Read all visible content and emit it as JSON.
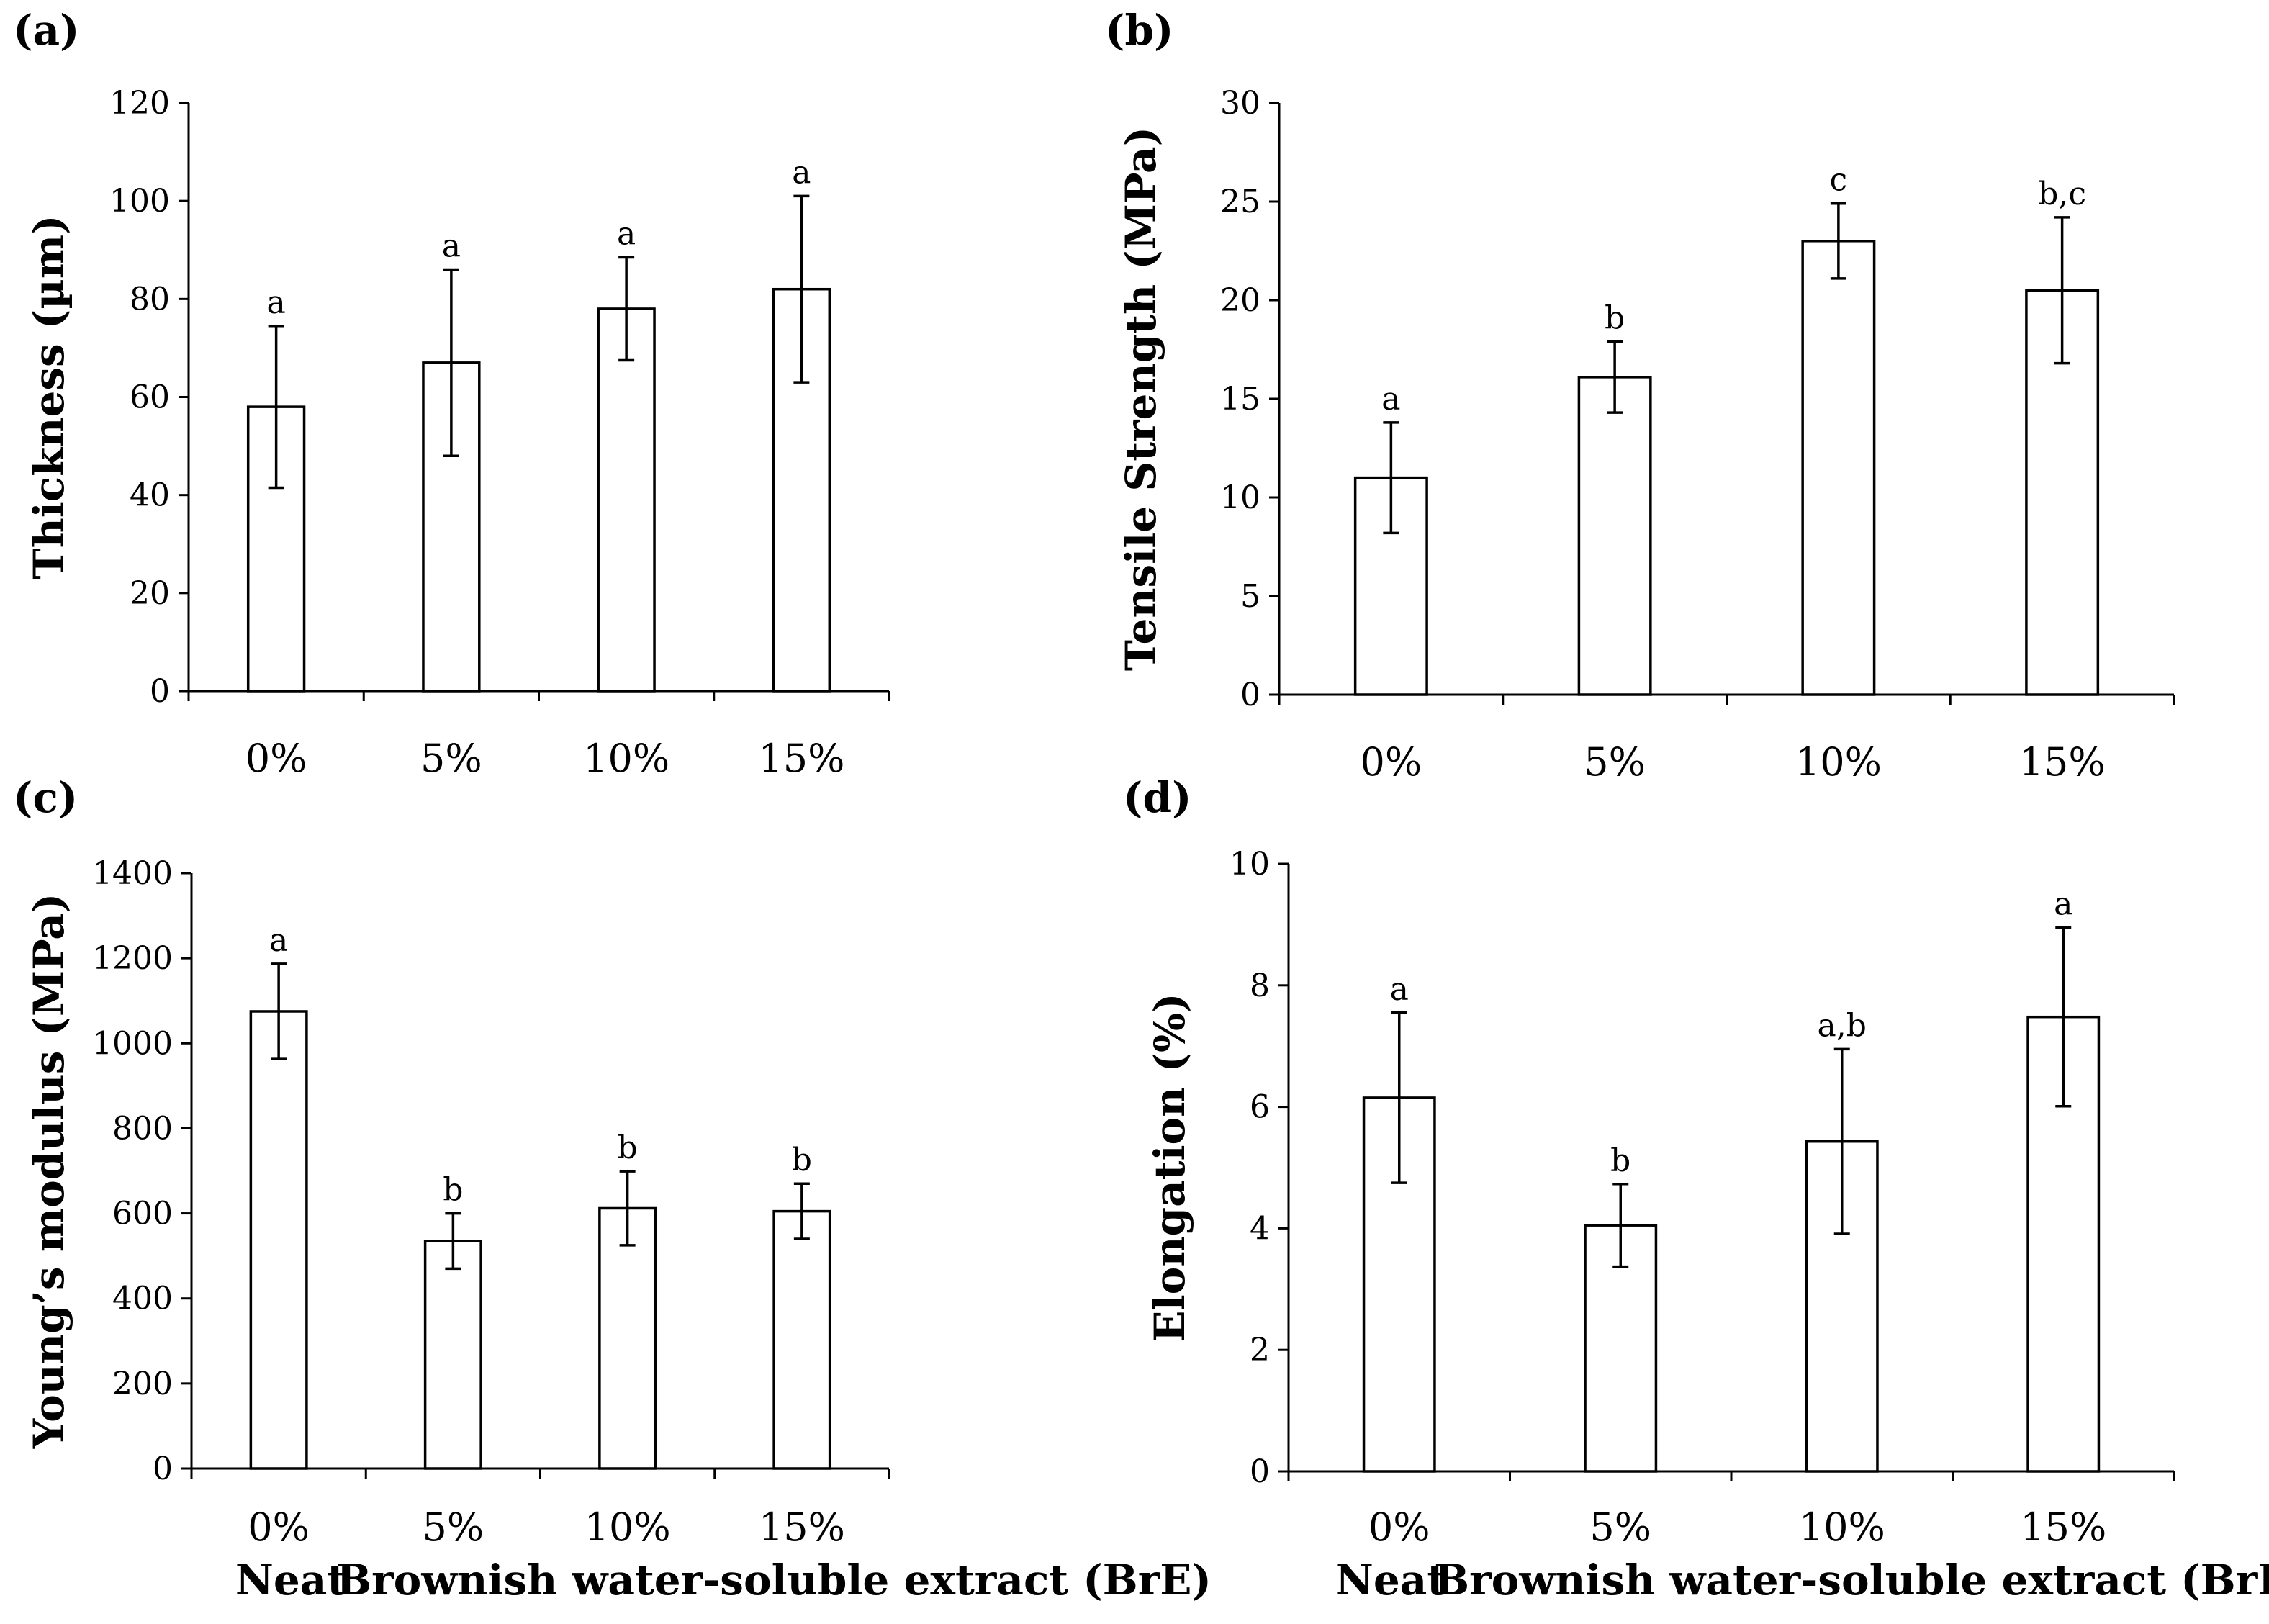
{
  "chart_data": [
    {
      "id": "a",
      "panel_label": "(a)",
      "type": "bar",
      "categories": [
        "0%",
        "5%",
        "10%",
        "15%"
      ],
      "values": [
        58,
        67,
        78,
        82
      ],
      "errors": [
        16.5,
        19,
        10.5,
        19
      ],
      "significance": [
        "a",
        "a",
        "a",
        "a"
      ],
      "ylabel": "Thickness (µm)",
      "xlabel": "",
      "ylim": [
        0,
        120
      ],
      "yticks": [
        0,
        20,
        40,
        60,
        80,
        100,
        120
      ]
    },
    {
      "id": "b",
      "panel_label": "(b)",
      "type": "bar",
      "categories": [
        "0%",
        "5%",
        "10%",
        "15%"
      ],
      "values": [
        11,
        16.1,
        23,
        20.5
      ],
      "errors": [
        2.8,
        1.8,
        1.9,
        3.7
      ],
      "significance": [
        "a",
        "b",
        "c",
        "b,c"
      ],
      "ylabel": "Tensile Strength (MPa)",
      "xlabel": "",
      "ylim": [
        0,
        30
      ],
      "yticks": [
        0,
        5,
        10,
        15,
        20,
        25,
        30
      ]
    },
    {
      "id": "c",
      "panel_label": "(c)",
      "type": "bar",
      "categories": [
        "0%",
        "5%",
        "10%",
        "15%"
      ],
      "values": [
        1075,
        535,
        612,
        605
      ],
      "errors": [
        112,
        65,
        87,
        65
      ],
      "significance": [
        "a",
        "b",
        "b",
        "b"
      ],
      "ylabel": "Young’s modulus (MPa)",
      "xlabel": "",
      "ylim": [
        0,
        1400
      ],
      "yticks": [
        0,
        200,
        400,
        600,
        800,
        1000,
        1200,
        1400
      ]
    },
    {
      "id": "d",
      "panel_label": "(d)",
      "type": "bar",
      "categories": [
        "0%",
        "5%",
        "10%",
        "15%"
      ],
      "values": [
        6.15,
        4.05,
        5.43,
        7.48
      ],
      "errors": [
        1.4,
        0.68,
        1.52,
        1.47
      ],
      "significance": [
        "a",
        "b",
        "a,b",
        "a"
      ],
      "ylabel": "Elongation (%)",
      "xlabel": "",
      "ylim": [
        0,
        10
      ],
      "yticks": [
        0,
        2,
        4,
        6,
        8,
        10
      ]
    }
  ],
  "group_labels": {
    "neat": "Neat",
    "bre": "Brownish water-soluble extract (BrE)"
  }
}
